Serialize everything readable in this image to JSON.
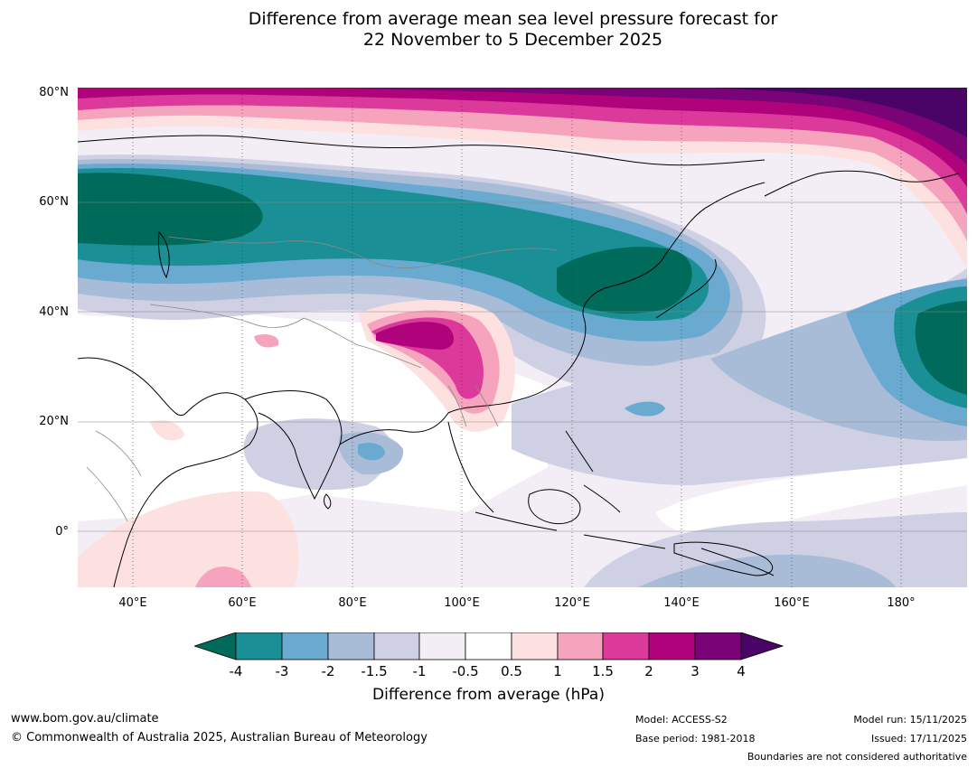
{
  "title_line1": "Difference from average mean sea level pressure forecast for",
  "title_line2": "22 November to 5 December 2025",
  "lat_labels": [
    "80°N",
    "60°N",
    "40°N",
    "20°N",
    "0°"
  ],
  "lon_labels": [
    "40°E",
    "60°E",
    "80°E",
    "100°E",
    "120°E",
    "140°E",
    "160°E",
    "180°"
  ],
  "colorbar": {
    "title": "Difference from average (hPa)",
    "ticks": [
      "-4",
      "-3",
      "-2",
      "-1.5",
      "-1",
      "-0.5",
      "0.5",
      "1",
      "1.5",
      "2",
      "3",
      "4"
    ],
    "colors": {
      "below_min": "#006b5b",
      "bins": [
        "#1b8f96",
        "#6aaad1",
        "#a8bcd8",
        "#cfd0e4",
        "#f3eef5",
        "#ffffff",
        "#fde0e0",
        "#f6a3bd",
        "#dc3a9a",
        "#b0037b",
        "#7a0378"
      ],
      "above_max": "#4a0465"
    }
  },
  "footer": {
    "website": "www.bom.gov.au/climate",
    "copyright": "© Commonwealth of Australia 2025, Australian Bureau of Meteorology",
    "model": "Model: ACCESS-S2",
    "base_period": "Base period: 1981-2018",
    "model_run": "Model run: 15/11/2025",
    "issued": "Issued: 17/11/2025",
    "disclaimer": "Boundaries are not considered authoritative"
  }
}
